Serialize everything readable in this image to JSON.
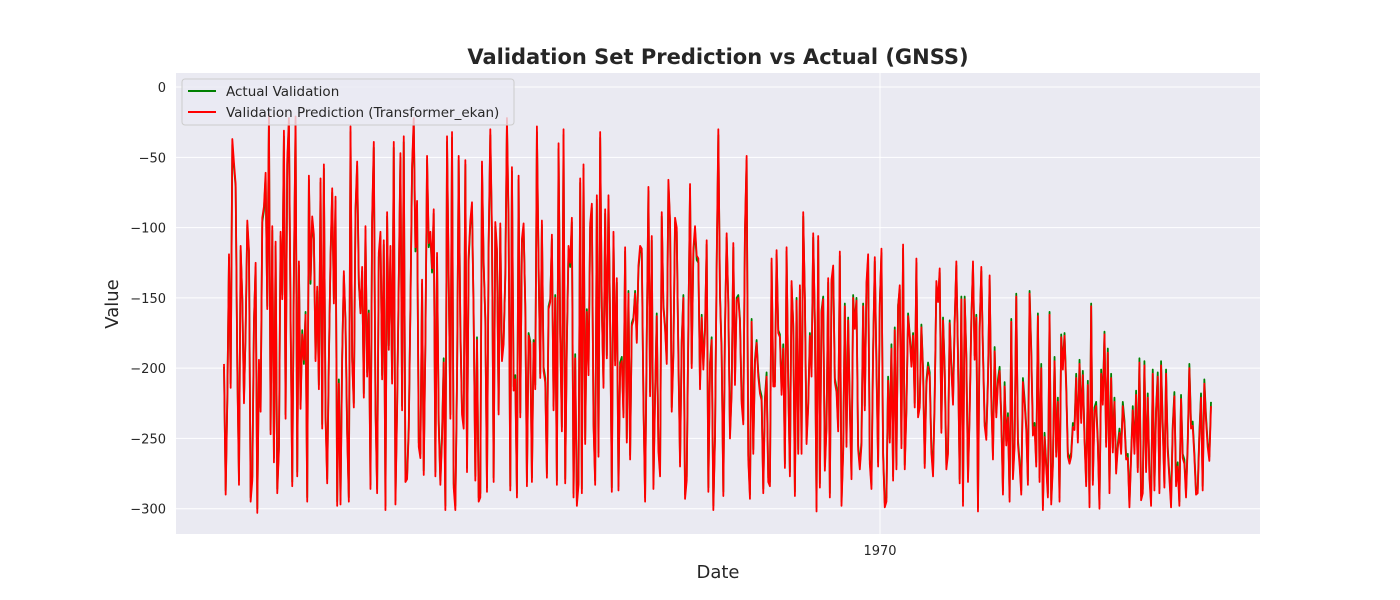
{
  "chart_data": {
    "type": "line",
    "title": "Validation Set Prediction vs Actual (GNSS)",
    "xlabel": "Date",
    "ylabel": "Value",
    "x_ticks": [
      "1970"
    ],
    "y_ticks": [
      0,
      -50,
      -100,
      -150,
      -200,
      -250,
      -300
    ],
    "ylim": [
      -318,
      10
    ],
    "grid": true,
    "legend_position": "upper-left",
    "series": [
      {
        "name": "Actual Validation",
        "color": "#008000",
        "values": [
          -199,
          -287,
          -221,
          -121,
          -211,
          -41,
          -57,
          -71,
          -199,
          -280,
          -116,
          -150,
          -222,
          -175,
          -98,
          -118,
          -292,
          -277,
          -166,
          -128,
          -300,
          -197,
          -228,
          -96,
          -88,
          -64,
          -156,
          -23,
          -244,
          -102,
          -264,
          -113,
          -286,
          -255,
          -106,
          -148,
          -35,
          -233,
          -55,
          -26,
          -163,
          -281,
          -133,
          -25,
          -274,
          -127,
          -226,
          -173,
          -197,
          -160,
          -292,
          -66,
          -140,
          -95,
          -108,
          -193,
          -145,
          -212,
          -68,
          -240,
          -58,
          -232,
          -279,
          -193,
          -123,
          -75,
          -151,
          -81,
          -295,
          -208,
          -294,
          -191,
          -134,
          -166,
          -244,
          -292,
          -32,
          -192,
          -225,
          -90,
          -56,
          -140,
          -159,
          -131,
          -218,
          -102,
          -203,
          -159,
          -283,
          -96,
          -43,
          -226,
          -286,
          -121,
          -106,
          -205,
          -112,
          -298,
          -92,
          -184,
          -116,
          -208,
          -43,
          -294,
          -227,
          -140,
          -50,
          -227,
          -39,
          -278,
          -276,
          -242,
          -156,
          -59,
          -26,
          -117,
          -84,
          -253,
          -261,
          -140,
          -273,
          -181,
          -52,
          -114,
          -106,
          -132,
          -90,
          -274,
          -121,
          -237,
          -280,
          -247,
          -193,
          -298,
          -39,
          -139,
          -233,
          -36,
          -282,
          -298,
          -207,
          -52,
          -170,
          -230,
          -240,
          -55,
          -271,
          -123,
          -98,
          -85,
          -162,
          -277,
          -178,
          -292,
          -289,
          -56,
          -127,
          -164,
          -285,
          -114,
          -34,
          -106,
          -278,
          -99,
          -118,
          -230,
          -100,
          -192,
          -180,
          -136,
          -26,
          -100,
          -284,
          -60,
          -213,
          -205,
          -289,
          -66,
          -232,
          -111,
          -100,
          -154,
          -281,
          -175,
          -181,
          -278,
          -180,
          -212,
          -32,
          -128,
          -204,
          -98,
          -199,
          -207,
          -275,
          -156,
          -151,
          -108,
          -227,
          -148,
          -280,
          -44,
          -175,
          -242,
          -34,
          -279,
          -180,
          -116,
          -128,
          -96,
          -289,
          -190,
          -295,
          -280,
          -68,
          -286,
          -58,
          -251,
          -158,
          -202,
          -100,
          -86,
          -237,
          -280,
          -80,
          -260,
          -36,
          -156,
          -211,
          -90,
          -191,
          -80,
          -167,
          -285,
          -106,
          -195,
          -139,
          -284,
          -196,
          -192,
          -232,
          -117,
          -250,
          -145,
          -262,
          -168,
          -164,
          -145,
          -180,
          -130,
          -116,
          -118,
          -222,
          -292,
          -177,
          -74,
          -217,
          -109,
          -283,
          -218,
          -161,
          -256,
          -274,
          -92,
          -155,
          -170,
          -194,
          -69,
          -98,
          -228,
          -188,
          -96,
          -103,
          -190,
          -267,
          -180,
          -148,
          -290,
          -277,
          -170,
          -72,
          -197,
          -118,
          -102,
          -123,
          -125,
          -212,
          -162,
          -198,
          -171,
          -112,
          -285,
          -196,
          -178,
          -298,
          -248,
          -128,
          -34,
          -147,
          -188,
          -288,
          -171,
          -107,
          -153,
          -247,
          -215,
          -114,
          -209,
          -150,
          -148,
          -165,
          -222,
          -237,
          -104,
          -52,
          -262,
          -290,
          -165,
          -258,
          -194,
          -180,
          -203,
          -215,
          -220,
          -286,
          -221,
          -203,
          -278,
          -281,
          -125,
          -210,
          -210,
          -119,
          -173,
          -176,
          -216,
          -183,
          -268,
          -117,
          -210,
          -274,
          -141,
          -168,
          -288,
          -150,
          -258,
          -144,
          -258,
          -92,
          -150,
          -251,
          -225,
          -175,
          -203,
          -107,
          -166,
          -299,
          -109,
          -282,
          -159,
          -149,
          -270,
          -240,
          -139,
          -289,
          -140,
          -130,
          -207,
          -214,
          -242,
          -120,
          -295,
          -258,
          -154,
          -253,
          -164,
          -226,
          -276,
          -148,
          -170,
          -150,
          -255,
          -269,
          -252,
          -154,
          -227,
          -142,
          -122,
          -265,
          -283,
          -186,
          -124,
          -197,
          -267,
          -154,
          -118,
          -260,
          -296,
          -292,
          -206,
          -250,
          -183,
          -277,
          -171,
          -269,
          -155,
          -144,
          -254,
          -115,
          -269,
          -228,
          -161,
          -176,
          -196,
          -175,
          -225,
          -125,
          -232,
          -225,
          -169,
          -200,
          -268,
          -209,
          -196,
          -203,
          -257,
          -274,
          -219,
          -141,
          -151,
          -132,
          -243,
          -164,
          -199,
          -269,
          -258,
          -166,
          -198,
          -223,
          -166,
          -127,
          -191,
          -279,
          -149,
          -295,
          -149,
          -190,
          -278,
          -230,
          -165,
          -127,
          -191,
          -162,
          -299,
          -171,
          -131,
          -187,
          -238,
          -248,
          -207,
          -137,
          -220,
          -262,
          -185,
          -232,
          -208,
          -199,
          -234,
          -287,
          -210,
          -252,
          -232,
          -292,
          -165,
          -276,
          -253,
          -147,
          -251,
          -266,
          -287,
          -207,
          -222,
          -241,
          -280,
          -145,
          -186,
          -245,
          -239,
          -267,
          -161,
          -278,
          -197,
          -298,
          -246,
          -268,
          -289,
          -160,
          -294,
          -267,
          -192,
          -260,
          -221,
          -292,
          -176,
          -198,
          -175,
          -211,
          -260,
          -265,
          -260,
          -239,
          -241,
          -204,
          -250,
          -194,
          -236,
          -202,
          -248,
          -281,
          -209,
          -296,
          -154,
          -280,
          -228,
          -224,
          -251,
          -297,
          -201,
          -223,
          -174,
          -253,
          -186,
          -286,
          -204,
          -257,
          -221,
          -272,
          -254,
          -243,
          -258,
          -224,
          -237,
          -262,
          -261,
          -296,
          -261,
          -227,
          -258,
          -216,
          -271,
          -193,
          -291,
          -286,
          -195,
          -271,
          -218,
          -275,
          -295,
          -201,
          -284,
          -229,
          -203,
          -286,
          -195,
          -239,
          -282,
          -201,
          -256,
          -276,
          -296,
          -241,
          -217,
          -281,
          -267,
          -295,
          -219,
          -261,
          -265,
          -289,
          -253,
          -197,
          -240,
          -238,
          -260,
          -287,
          -286,
          -246,
          -218,
          -284,
          -208,
          -234,
          -253,
          -263,
          -224
        ]
      },
      {
        "name": "Validation Prediction (Transformer_ekan)",
        "color": "#ff0000",
        "values": [
          -197,
          -290,
          -223,
          -119,
          -214,
          -37,
          -54,
          -69,
          -202,
          -283,
          -113,
          -152,
          -225,
          -172,
          -95,
          -116,
          -295,
          -280,
          -168,
          -125,
          -303,
          -194,
          -231,
          -93,
          -85,
          -61,
          -158,
          -19,
          -247,
          -99,
          -267,
          -110,
          -289,
          -258,
          -103,
          -151,
          -31,
          -236,
          -52,
          -22,
          -165,
          -284,
          -130,
          -21,
          -277,
          -124,
          -229,
          -176,
          -194,
          -162,
          -295,
          -63,
          -137,
          -92,
          -105,
          -195,
          -142,
          -215,
          -65,
          -243,
          -55,
          -235,
          -282,
          -196,
          -120,
          -72,
          -154,
          -78,
          -298,
          -211,
          -297,
          -193,
          -131,
          -168,
          -247,
          -295,
          -28,
          -195,
          -228,
          -87,
          -53,
          -137,
          -161,
          -128,
          -221,
          -99,
          -206,
          -161,
          -286,
          -93,
          -39,
          -229,
          -289,
          -118,
          -103,
          -208,
          -109,
          -301,
          -89,
          -187,
          -113,
          -211,
          -39,
          -297,
          -230,
          -137,
          -47,
          -230,
          -35,
          -281,
          -279,
          -245,
          -158,
          -56,
          -22,
          -114,
          -81,
          -256,
          -264,
          -137,
          -276,
          -183,
          -49,
          -111,
          -103,
          -129,
          -87,
          -277,
          -118,
          -240,
          -283,
          -250,
          -196,
          -301,
          -35,
          -136,
          -236,
          -32,
          -285,
          -301,
          -210,
          -49,
          -172,
          -233,
          -243,
          -52,
          -274,
          -120,
          -95,
          -82,
          -164,
          -280,
          -180,
          -295,
          -292,
          -53,
          -124,
          -166,
          -288,
          -111,
          -30,
          -103,
          -281,
          -96,
          -115,
          -233,
          -97,
          -195,
          -183,
          -133,
          -22,
          -97,
          -287,
          -57,
          -216,
          -208,
          -292,
          -63,
          -235,
          -108,
          -97,
          -156,
          -284,
          -177,
          -183,
          -281,
          -182,
          -215,
          -28,
          -125,
          -207,
          -95,
          -202,
          -210,
          -278,
          -158,
          -153,
          -105,
          -230,
          -150,
          -283,
          -40,
          -177,
          -245,
          -30,
          -282,
          -182,
          -113,
          -125,
          -93,
          -292,
          -193,
          -298,
          -283,
          -65,
          -289,
          -55,
          -254,
          -160,
          -205,
          -97,
          -83,
          -240,
          -283,
          -77,
          -263,
          -32,
          -158,
          -214,
          -87,
          -193,
          -77,
          -169,
          -288,
          -103,
          -198,
          -136,
          -287,
          -199,
          -195,
          -235,
          -114,
          -253,
          -147,
          -265,
          -170,
          -166,
          -147,
          -182,
          -127,
          -113,
          -115,
          -225,
          -295,
          -179,
          -71,
          -220,
          -106,
          -286,
          -221,
          -163,
          -259,
          -277,
          -89,
          -157,
          -172,
          -197,
          -66,
          -95,
          -231,
          -191,
          -93,
          -100,
          -193,
          -270,
          -182,
          -150,
          -293,
          -280,
          -172,
          -69,
          -200,
          -115,
          -99,
          -120,
          -122,
          -215,
          -164,
          -201,
          -173,
          -109,
          -288,
          -199,
          -180,
          -301,
          -251,
          -125,
          -30,
          -149,
          -191,
          -291,
          -173,
          -104,
          -155,
          -250,
          -218,
          -111,
          -212,
          -152,
          -150,
          -167,
          -225,
          -240,
          -101,
          -49,
          -265,
          -293,
          -167,
          -261,
          -197,
          -182,
          -206,
          -218,
          -223,
          -289,
          -224,
          -206,
          -281,
          -284,
          -122,
          -213,
          -213,
          -116,
          -175,
          -178,
          -219,
          -186,
          -271,
          -114,
          -213,
          -277,
          -138,
          -170,
          -291,
          -152,
          -261,
          -141,
          -261,
          -89,
          -152,
          -254,
          -228,
          -177,
          -206,
          -104,
          -168,
          -302,
          -106,
          -285,
          -161,
          -151,
          -273,
          -243,
          -136,
          -292,
          -137,
          -127,
          -210,
          -217,
          -245,
          -117,
          -298,
          -261,
          -156,
          -256,
          -166,
          -229,
          -279,
          -150,
          -172,
          -152,
          -258,
          -272,
          -255,
          -156,
          -230,
          -139,
          -119,
          -268,
          -286,
          -189,
          -121,
          -200,
          -270,
          -156,
          -115,
          -263,
          -299,
          -295,
          -209,
          -253,
          -186,
          -280,
          -173,
          -272,
          -157,
          -141,
          -257,
          -112,
          -272,
          -231,
          -163,
          -178,
          -199,
          -177,
          -228,
          -122,
          -235,
          -228,
          -171,
          -203,
          -271,
          -212,
          -199,
          -206,
          -260,
          -277,
          -222,
          -138,
          -153,
          -129,
          -246,
          -166,
          -202,
          -272,
          -261,
          -168,
          -201,
          -226,
          -168,
          -124,
          -194,
          -282,
          -151,
          -298,
          -151,
          -193,
          -281,
          -233,
          -167,
          -124,
          -194,
          -164,
          -302,
          -173,
          -128,
          -190,
          -241,
          -251,
          -210,
          -134,
          -223,
          -265,
          -188,
          -235,
          -211,
          -202,
          -237,
          -290,
          -213,
          -255,
          -235,
          -295,
          -167,
          -279,
          -256,
          -149,
          -254,
          -269,
          -290,
          -210,
          -225,
          -244,
          -283,
          -147,
          -189,
          -248,
          -242,
          -270,
          -163,
          -281,
          -200,
          -301,
          -249,
          -271,
          -292,
          -162,
          -297,
          -270,
          -195,
          -263,
          -224,
          -295,
          -178,
          -201,
          -177,
          -214,
          -263,
          -268,
          -263,
          -242,
          -244,
          -207,
          -253,
          -197,
          -239,
          -205,
          -251,
          -284,
          -212,
          -299,
          -156,
          -283,
          -231,
          -227,
          -254,
          -300,
          -204,
          -226,
          -176,
          -256,
          -189,
          -289,
          -207,
          -260,
          -224,
          -275,
          -257,
          -246,
          -261,
          -227,
          -240,
          -265,
          -264,
          -299,
          -264,
          -230,
          -261,
          -219,
          -274,
          -196,
          -294,
          -289,
          -198,
          -274,
          -221,
          -278,
          -298,
          -204,
          -287,
          -232,
          -206,
          -289,
          -198,
          -242,
          -285,
          -204,
          -259,
          -279,
          -299,
          -244,
          -220,
          -284,
          -270,
          -298,
          -222,
          -264,
          -268,
          -292,
          -256,
          -200,
          -243,
          -241,
          -263,
          -290,
          -289,
          -249,
          -221,
          -287,
          -211,
          -237,
          -256,
          -266,
          -227
        ]
      }
    ]
  }
}
